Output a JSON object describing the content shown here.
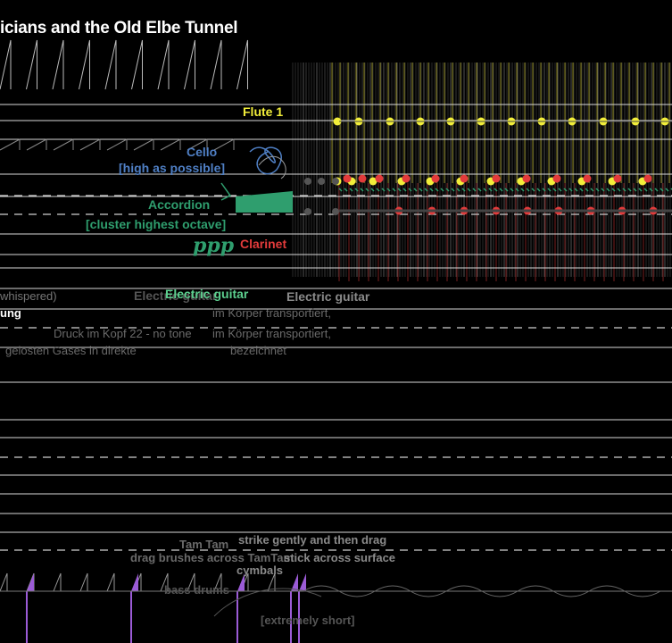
{
  "title": "icians and the Old Elbe Tunnel",
  "labels": {
    "flute": "Flute 1",
    "cello": "Cello",
    "cello_note": "[high as possible]",
    "accordion": "Accordion",
    "accordion_note": "[cluster highest octave]",
    "dynamic": "ppp",
    "clarinet": "Clarinet",
    "electric_guitar_ghost": "Electric guitar",
    "electric_guitar": "Electric guitar",
    "electric_guitar_right": "Electric guitar",
    "whispered": "whispered)",
    "text_line_1a": "ung",
    "text_line_1b": "im Körper transportiert,",
    "text_line_2a": "Druck  im Kopf 22 - no tone",
    "text_line_2b": "im Körper transportiert,",
    "text_line_3a": "gelösten Gases in direkte",
    "text_line_3b": "bezeichnet",
    "tam_tam": "Tam Tam",
    "strike": "strike gently and then drag",
    "drag": "drag brushes across TamTam",
    "stick": "stick across surface",
    "cymbals": "cymbals",
    "bass_drums": "bass drums",
    "extremely_short": "[extremely short]"
  },
  "colors": {
    "background": "#000000",
    "flute": "#f2ee3a",
    "cello": "#4f7fc4",
    "accordion": "#2f9e6e",
    "clarinet": "#e23b3b",
    "guitar": "#5ccf8e",
    "percussion": "#9b5bd6",
    "staff": "#d9d9d9"
  }
}
